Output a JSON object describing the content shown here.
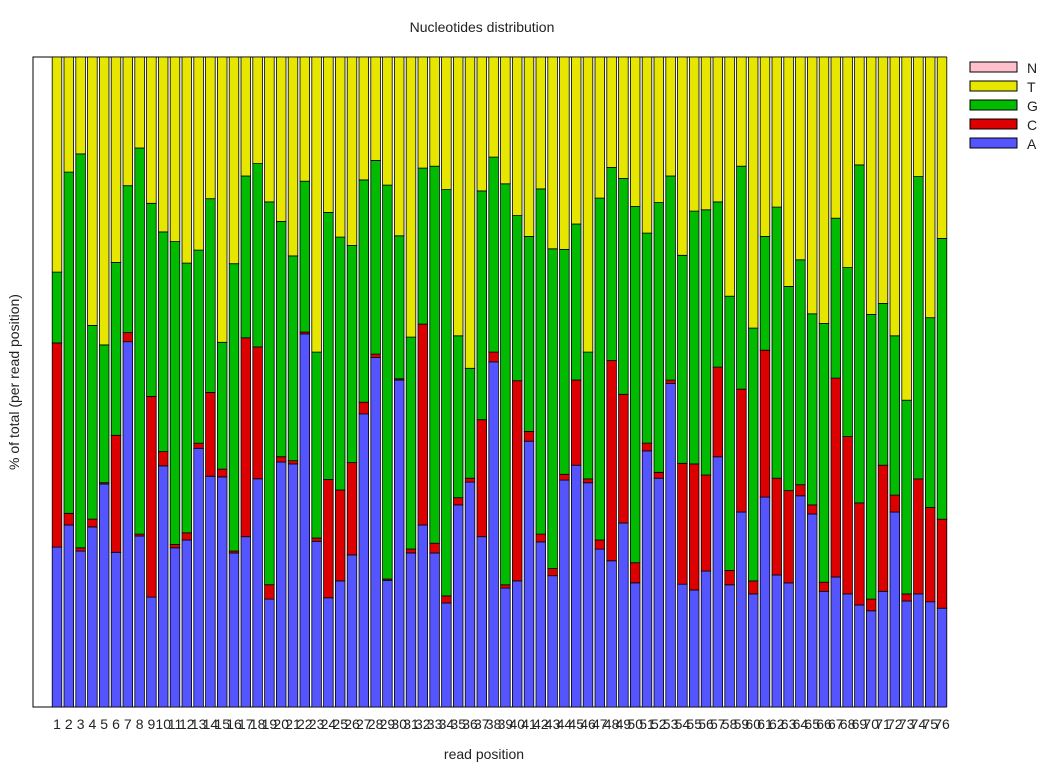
{
  "chart_data": {
    "type": "bar",
    "stacked": true,
    "title": "Nucleotides distribution",
    "xlabel": "read position",
    "ylabel": "% of total (per read position)",
    "ylim": [
      0,
      100
    ],
    "legend_position": "right-top",
    "categories": [
      1,
      2,
      3,
      4,
      5,
      6,
      7,
      8,
      9,
      10,
      11,
      12,
      13,
      14,
      15,
      16,
      17,
      18,
      19,
      20,
      21,
      22,
      23,
      24,
      25,
      26,
      27,
      28,
      29,
      30,
      31,
      32,
      33,
      34,
      35,
      36,
      37,
      38,
      39,
      40,
      41,
      42,
      43,
      44,
      45,
      46,
      47,
      48,
      49,
      50,
      51,
      52,
      53,
      54,
      55,
      56,
      57,
      58,
      59,
      60,
      61,
      62,
      63,
      64,
      65,
      66,
      67,
      68,
      69,
      70,
      71,
      72,
      73,
      74,
      75,
      76
    ],
    "series": [
      {
        "name": "A",
        "color": "#5555ff",
        "values": [
          24.6,
          28.0,
          24.0,
          27.7,
          34.3,
          23.8,
          56.2,
          26.3,
          16.9,
          37.1,
          24.5,
          25.7,
          39.8,
          35.5,
          35.4,
          23.7,
          26.2,
          35.1,
          16.6,
          37.7,
          37.4,
          57.4,
          25.5,
          16.8,
          19.4,
          23.4,
          45.1,
          53.8,
          19.5,
          50.3,
          23.7,
          28.0,
          23.7,
          16.0,
          31.1,
          34.6,
          26.2,
          53.1,
          18.3,
          19.4,
          40.9,
          25.4,
          20.2,
          34.9,
          37.2,
          34.5,
          24.3,
          22.5,
          28.3,
          19.1,
          39.4,
          35.2,
          49.8,
          18.9,
          18.0,
          20.9,
          38.5,
          18.8,
          30.0,
          17.4,
          32.3,
          20.3,
          19.1,
          32.5,
          29.7,
          17.8,
          20.0,
          17.4,
          15.7,
          14.8,
          17.8,
          30.0,
          16.3,
          17.4,
          16.2,
          15.2
        ]
      },
      {
        "name": "C",
        "color": "#dd0000",
        "values": [
          31.4,
          1.8,
          0.5,
          1.2,
          0.2,
          18.0,
          1.4,
          0.3,
          30.9,
          2.2,
          0.5,
          1.1,
          0.8,
          12.9,
          1.2,
          0.3,
          30.6,
          20.3,
          2.2,
          0.8,
          0.5,
          0.3,
          0.5,
          18.2,
          14.0,
          14.2,
          1.8,
          0.5,
          0.2,
          0.2,
          0.6,
          30.9,
          1.5,
          1.1,
          1.1,
          0.6,
          18.0,
          1.5,
          0.5,
          30.8,
          1.5,
          1.2,
          1.1,
          0.9,
          13.1,
          0.6,
          1.4,
          30.8,
          19.8,
          3.1,
          1.2,
          0.9,
          0.5,
          18.6,
          19.4,
          14.8,
          13.8,
          2.2,
          18.9,
          2.0,
          22.6,
          14.9,
          14.2,
          1.7,
          1.4,
          1.4,
          30.6,
          24.2,
          15.7,
          1.8,
          19.4,
          2.6,
          1.1,
          17.7,
          14.5,
          13.7
        ]
      },
      {
        "name": "G",
        "color": "#00bb00",
        "values": [
          10.9,
          52.5,
          60.6,
          29.8,
          21.2,
          26.6,
          22.6,
          59.4,
          29.7,
          33.8,
          46.6,
          41.5,
          29.7,
          29.8,
          19.5,
          44.2,
          24.9,
          28.2,
          58.9,
          36.2,
          31.5,
          23.2,
          28.6,
          41.1,
          38.9,
          33.4,
          34.2,
          29.8,
          60.6,
          22.0,
          32.6,
          24.0,
          58.0,
          62.5,
          24.9,
          16.9,
          35.2,
          30.0,
          61.7,
          25.4,
          30.0,
          53.1,
          49.2,
          34.6,
          24.0,
          19.5,
          52.6,
          29.7,
          33.2,
          54.8,
          32.3,
          41.5,
          31.4,
          32.0,
          38.9,
          40.8,
          25.4,
          42.2,
          34.3,
          38.9,
          17.5,
          41.7,
          31.4,
          34.6,
          29.4,
          39.8,
          24.6,
          26.0,
          52.0,
          43.8,
          24.9,
          24.5,
          29.8,
          46.5,
          29.2,
          43.2
        ]
      },
      {
        "name": "T",
        "color": "#e6e600",
        "values": [
          33.1,
          17.7,
          14.9,
          41.3,
          44.3,
          31.6,
          19.8,
          14.0,
          22.5,
          26.9,
          28.4,
          31.7,
          29.7,
          21.8,
          43.9,
          31.8,
          18.3,
          16.4,
          22.3,
          25.3,
          30.6,
          19.1,
          45.4,
          23.9,
          27.7,
          29.0,
          18.9,
          15.9,
          19.7,
          27.5,
          43.1,
          17.1,
          16.8,
          20.4,
          42.9,
          47.9,
          20.6,
          15.4,
          19.5,
          24.4,
          27.6,
          20.3,
          29.5,
          29.6,
          25.7,
          45.4,
          21.7,
          17.0,
          18.7,
          23.0,
          27.1,
          22.4,
          18.3,
          30.5,
          23.7,
          23.5,
          22.3,
          36.8,
          16.8,
          41.7,
          27.6,
          23.1,
          35.3,
          31.2,
          39.5,
          41.0,
          24.8,
          32.4,
          16.6,
          39.6,
          37.9,
          42.9,
          52.8,
          18.4,
          40.1,
          27.9
        ]
      },
      {
        "name": "N",
        "color": "#ffc0cb",
        "values": [
          0,
          0,
          0,
          0,
          0,
          0,
          0,
          0,
          0,
          0,
          0,
          0,
          0,
          0,
          0,
          0,
          0,
          0,
          0,
          0,
          0,
          0,
          0,
          0,
          0,
          0,
          0,
          0,
          0,
          0,
          0,
          0,
          0,
          0,
          0,
          0,
          0,
          0,
          0,
          0,
          0,
          0,
          0,
          0,
          0,
          0,
          0,
          0,
          0,
          0,
          0.3,
          0.3,
          0.3,
          0.3,
          0.3,
          0.3,
          0.3,
          0.3,
          0.3,
          0.3,
          0.3,
          0.3,
          0.3,
          0.3,
          0.3,
          0.3,
          0.3,
          0.3,
          0.3,
          0.3,
          0.3,
          0.3,
          0.3,
          0.3,
          0.3,
          0.3
        ]
      }
    ],
    "legend_order": [
      "N",
      "T",
      "G",
      "C",
      "A"
    ],
    "grid": false
  }
}
